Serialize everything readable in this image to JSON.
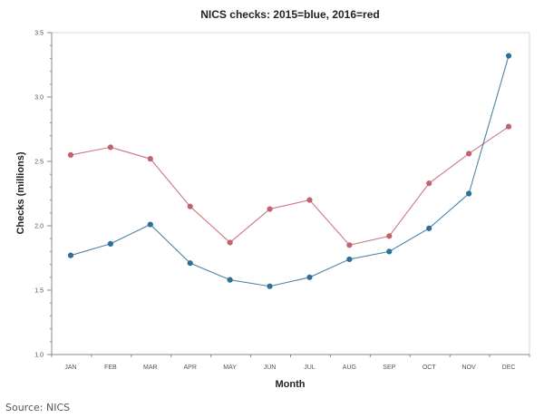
{
  "chart_data": {
    "type": "line",
    "title": "NICS checks: 2015=blue, 2016=red",
    "xlabel": "Month",
    "ylabel": "Checks (millions)",
    "categories": [
      "JAN",
      "FEB",
      "MAR",
      "APR",
      "MAY",
      "JUN",
      "JUL",
      "AUG",
      "SEP",
      "OCT",
      "NOV",
      "DEC"
    ],
    "series": [
      {
        "name": "2015",
        "color": "#2e6f96",
        "values": [
          1.77,
          1.86,
          2.01,
          1.71,
          1.58,
          1.53,
          1.6,
          1.74,
          1.8,
          1.98,
          2.25,
          3.32
        ]
      },
      {
        "name": "2016",
        "color": "#c0636e",
        "values": [
          2.55,
          2.61,
          2.52,
          2.15,
          1.87,
          2.13,
          2.2,
          1.85,
          1.92,
          2.33,
          2.56,
          2.77
        ]
      }
    ],
    "ylim": [
      1.0,
      3.5
    ],
    "yticks": [
      "1.0",
      "1.5",
      "2.0",
      "2.5",
      "3.0",
      "3.5"
    ],
    "grid": false,
    "legend": "none (encoded in title)"
  },
  "source": "Source: NICS"
}
